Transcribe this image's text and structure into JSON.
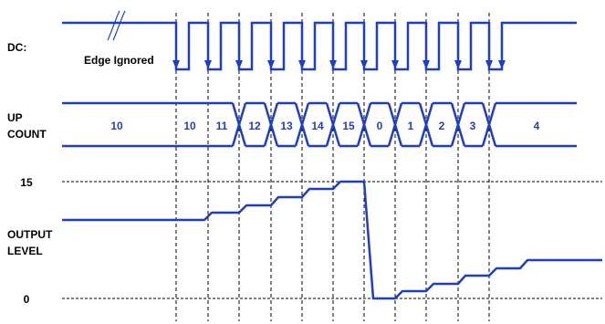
{
  "labels": {
    "dc": "DC:",
    "edge_ignored": "Edge Ignored",
    "up": "UP",
    "count": "COUNT",
    "output": "OUTPUT",
    "level": "LEVEL",
    "level_max": "15",
    "level_min": "0"
  },
  "counts": [
    "10",
    "10",
    "11",
    "12",
    "13",
    "14",
    "15",
    "0",
    "1",
    "2",
    "3",
    "4"
  ],
  "colors": {
    "signal": "#1f3fbf",
    "count_text": "#1f3fbf",
    "label_text": "#000000",
    "guide": "#000000",
    "background": "#ffffff"
  }
}
